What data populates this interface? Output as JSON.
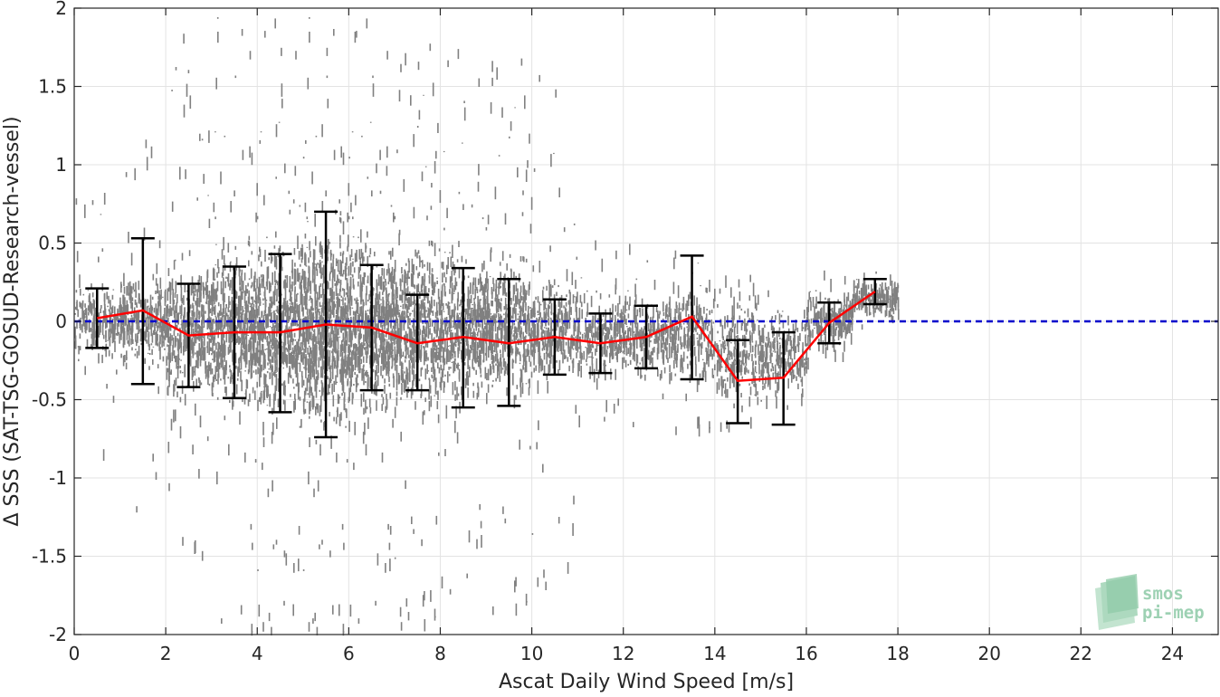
{
  "chart_data": {
    "type": "scatter",
    "xlabel": "Ascat Daily Wind Speed [m/s]",
    "ylabel": "Δ SSS (SAT-TSG-GOSUD-Research-vessel)",
    "xlim": [
      0,
      25
    ],
    "ylim": [
      -2,
      2
    ],
    "x_ticks": [
      0,
      2,
      4,
      6,
      8,
      10,
      12,
      14,
      16,
      18,
      20,
      22,
      24
    ],
    "x_tick_labels": [
      "0",
      "2",
      "4",
      "6",
      "8",
      "10",
      "12",
      "14",
      "16",
      "18",
      "20",
      "22",
      "24"
    ],
    "y_ticks": [
      -2,
      -1.5,
      -1,
      -0.5,
      0,
      0.5,
      1,
      1.5,
      2
    ],
    "y_tick_labels": [
      "-2",
      "-1.5",
      "-1",
      "-0.5",
      "0",
      "0.5",
      "1",
      "1.5",
      "2"
    ],
    "grid": true,
    "reference_line": {
      "y": 0,
      "style": "dashed",
      "color": "#0000cc"
    },
    "colors": {
      "scatter": "#808080",
      "mean_line": "#ff0000",
      "error_bars": "#000000"
    },
    "series": [
      {
        "type": "line_with_errorbars",
        "x": [
          0.5,
          1.5,
          2.5,
          3.5,
          4.5,
          5.5,
          6.5,
          7.5,
          8.5,
          9.5,
          10.5,
          11.5,
          12.5,
          13.5,
          14.5,
          15.5,
          16.5,
          17.5
        ],
        "mean": [
          0.02,
          0.07,
          -0.09,
          -0.07,
          -0.07,
          -0.02,
          -0.04,
          -0.14,
          -0.1,
          -0.14,
          -0.1,
          -0.14,
          -0.1,
          0.03,
          -0.38,
          -0.36,
          -0.01,
          0.19
        ],
        "upper": [
          0.21,
          0.53,
          0.24,
          0.35,
          0.43,
          0.7,
          0.36,
          0.17,
          0.34,
          0.27,
          0.14,
          0.05,
          0.1,
          0.42,
          -0.12,
          -0.07,
          0.12,
          0.27
        ],
        "lower": [
          -0.17,
          -0.4,
          -0.42,
          -0.49,
          -0.58,
          -0.74,
          -0.44,
          -0.44,
          -0.55,
          -0.54,
          -0.34,
          -0.33,
          -0.3,
          -0.37,
          -0.65,
          -0.66,
          -0.14,
          0.11
        ]
      },
      {
        "type": "scatter_density",
        "x": [
          0.5,
          1.5,
          2.5,
          3.5,
          4.5,
          5.5,
          6.5,
          7.5,
          8.5,
          9.5,
          10.5,
          11.5,
          12.5,
          13.5,
          14.5,
          15.5,
          16.5,
          17.5
        ],
        "center": [
          0.0,
          0.0,
          -0.05,
          -0.05,
          -0.05,
          -0.05,
          -0.05,
          -0.05,
          -0.05,
          -0.05,
          -0.05,
          -0.1,
          -0.1,
          -0.1,
          -0.2,
          -0.2,
          0.0,
          0.15
        ],
        "spread": [
          0.25,
          0.3,
          0.45,
          0.55,
          0.6,
          0.7,
          0.6,
          0.55,
          0.5,
          0.45,
          0.35,
          0.3,
          0.3,
          0.3,
          0.35,
          0.3,
          0.2,
          0.12
        ],
        "max_extent": [
          0.9,
          1.3,
          1.9,
          2.0,
          2.0,
          2.0,
          2.0,
          1.9,
          1.8,
          1.8,
          1.7,
          0.6,
          0.6,
          0.6,
          0.5,
          0.4,
          0.3,
          0.2
        ]
      }
    ]
  },
  "watermark": {
    "line1": "smos",
    "line2": "pi-mep"
  }
}
